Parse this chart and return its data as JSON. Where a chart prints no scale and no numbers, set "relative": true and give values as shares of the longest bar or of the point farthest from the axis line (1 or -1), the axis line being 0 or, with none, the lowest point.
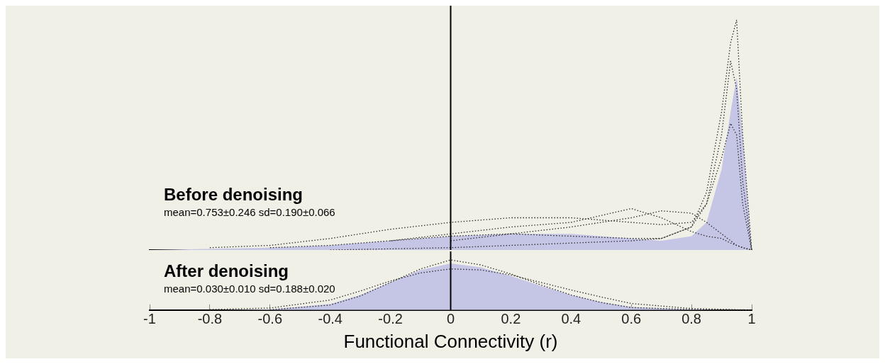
{
  "chart_data": [
    {
      "type": "area",
      "relative": true,
      "title": "Before denoising",
      "annotations": [
        "mean=0.753±0.246 sd=0.190±0.066"
      ],
      "xlim": [
        -1,
        1
      ],
      "tick_labels": false,
      "ref_lines": [
        {
          "axis": "x",
          "value": 0,
          "color": "#000000"
        }
      ],
      "x": [
        -1,
        -0.8,
        -0.6,
        -0.4,
        -0.2,
        0,
        0.2,
        0.4,
        0.6,
        0.7,
        0.8,
        0.85,
        0.9,
        0.93,
        0.95,
        0.97,
        1
      ],
      "series": [
        {
          "type": "area",
          "color": "#c5c5e6",
          "values": [
            0,
            0.005,
            0.01,
            0.02,
            0.04,
            0.06,
            0.07,
            0.07,
            0.05,
            0.04,
            0.06,
            0.12,
            0.35,
            0.6,
            0.75,
            0.5,
            0
          ]
        },
        {
          "type": "line",
          "line_style": "dotted",
          "color": "#2b2b2b",
          "x": [
            -0.4,
            -0.2,
            0,
            0.2,
            0.4,
            0.6,
            0.7,
            0.8,
            0.85,
            0.9,
            0.93,
            0.95,
            0.97,
            1
          ],
          "values": [
            0,
            0.005,
            0.01,
            0.02,
            0.03,
            0.04,
            0.05,
            0.1,
            0.25,
            0.6,
            0.9,
            1,
            0.5,
            0
          ]
        },
        {
          "type": "line",
          "line_style": "dotted",
          "color": "#2b2b2b",
          "x": [
            -0.6,
            -0.4,
            -0.2,
            0,
            0.2,
            0.4,
            0.6,
            0.7,
            0.8,
            0.85,
            0.9,
            0.93,
            0.95,
            0.97,
            1
          ],
          "values": [
            0.01,
            0.02,
            0.04,
            0.06,
            0.07,
            0.06,
            0.05,
            0.05,
            0.1,
            0.2,
            0.5,
            0.82,
            0.7,
            0.3,
            0
          ]
        },
        {
          "type": "line",
          "line_style": "dotted",
          "color": "#2b2b2b",
          "x": [
            -0.8,
            -0.6,
            -0.4,
            -0.2,
            0,
            0.2,
            0.4,
            0.6,
            0.7,
            0.8,
            0.85,
            0.9,
            0.93,
            0.95,
            0.97,
            1
          ],
          "values": [
            0.01,
            0.02,
            0.05,
            0.09,
            0.12,
            0.14,
            0.14,
            0.12,
            0.11,
            0.12,
            0.2,
            0.4,
            0.55,
            0.5,
            0.2,
            0
          ]
        },
        {
          "type": "line",
          "line_style": "dotted",
          "color": "#2b2b2b",
          "x": [
            -0.2,
            0,
            0.2,
            0.4,
            0.6,
            0.7,
            0.8,
            0.85,
            0.9,
            0.93,
            0.95,
            0.97,
            1
          ],
          "values": [
            0.04,
            0.07,
            0.1,
            0.12,
            0.18,
            0.14,
            0.08,
            0.06,
            0.05,
            0.03,
            0.02,
            0.01,
            0
          ]
        },
        {
          "type": "line",
          "line_style": "dotted",
          "color": "#2b2b2b",
          "x": [
            0,
            0.2,
            0.4,
            0.6,
            0.7,
            0.8,
            0.85,
            0.9,
            0.93,
            0.95,
            0.97,
            1
          ],
          "values": [
            0.04,
            0.07,
            0.1,
            0.14,
            0.17,
            0.16,
            0.12,
            0.07,
            0.04,
            0.02,
            0.01,
            0
          ]
        }
      ]
    },
    {
      "type": "area",
      "relative": true,
      "title": "After denoising",
      "annotations": [
        "mean=0.030±0.010 sd=0.188±0.020"
      ],
      "xlabel": "Functional Connectivity (r)",
      "xlim": [
        -1,
        1
      ],
      "xticks": [
        -1,
        -0.8,
        -0.6,
        -0.4,
        -0.2,
        0,
        0.2,
        0.4,
        0.6,
        0.8,
        1
      ],
      "tick_labels": "x",
      "ref_lines": [
        {
          "axis": "x",
          "value": 0,
          "color": "#000000"
        }
      ],
      "x": [
        -1,
        -0.8,
        -0.6,
        -0.4,
        -0.3,
        -0.2,
        -0.1,
        0,
        0.1,
        0.2,
        0.3,
        0.4,
        0.5,
        0.6,
        0.8,
        1
      ],
      "series": [
        {
          "type": "area",
          "color": "#c5c5e6",
          "values": [
            0,
            0,
            0.01,
            0.12,
            0.3,
            0.55,
            0.8,
            0.93,
            0.85,
            0.68,
            0.48,
            0.3,
            0.16,
            0.06,
            0.01,
            0
          ]
        },
        {
          "type": "line",
          "line_style": "dotted",
          "color": "#2b2b2b",
          "x": [
            -0.6,
            -0.4,
            -0.3,
            -0.2,
            -0.1,
            0,
            0.1,
            0.2,
            0.3,
            0.4,
            0.5,
            0.6,
            0.8,
            1
          ],
          "values": [
            0.005,
            0.1,
            0.28,
            0.55,
            0.82,
            1,
            0.9,
            0.72,
            0.5,
            0.3,
            0.15,
            0.05,
            0.01,
            0
          ]
        },
        {
          "type": "line",
          "line_style": "dotted",
          "color": "#2b2b2b",
          "x": [
            -0.8,
            -0.6,
            -0.4,
            -0.3,
            -0.2,
            -0.1,
            0,
            0.1,
            0.2,
            0.3,
            0.4,
            0.5,
            0.6,
            0.8,
            1
          ],
          "values": [
            0.01,
            0.04,
            0.2,
            0.38,
            0.58,
            0.74,
            0.82,
            0.8,
            0.7,
            0.55,
            0.4,
            0.26,
            0.13,
            0.03,
            0
          ]
        }
      ]
    }
  ]
}
